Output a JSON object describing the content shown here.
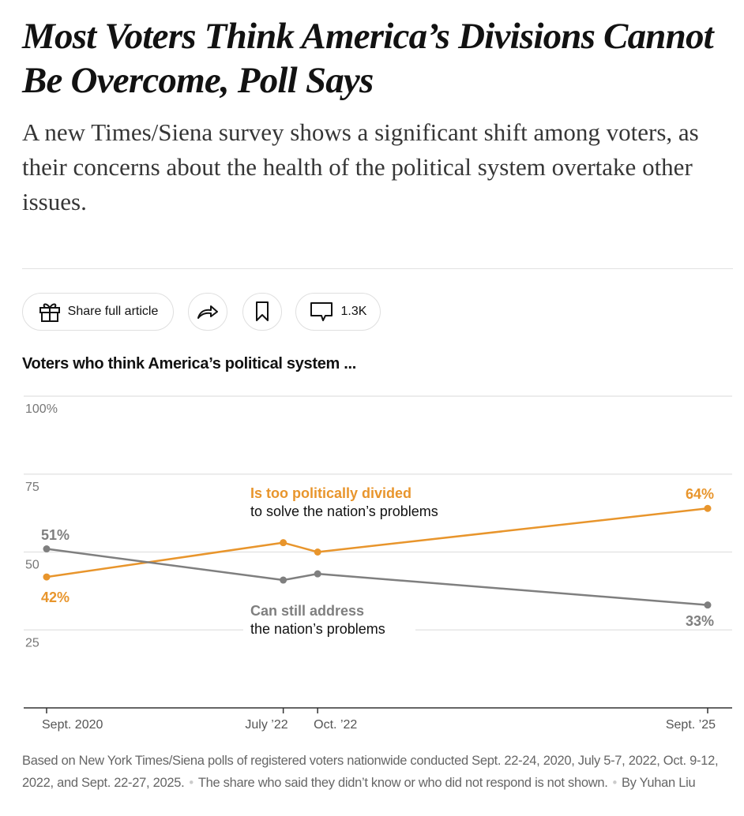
{
  "article": {
    "headline": "Most Voters Think America’s Divisions Cannot Be Overcome, Poll Says",
    "summary": "A new Times/Siena survey shows a significant shift among voters, as their concerns about the health of the political system overtake other issues."
  },
  "toolbar": {
    "share_label": "Share full article",
    "comments_count": "1.3K",
    "icons": [
      "gift-icon",
      "share-arrow-icon",
      "bookmark-icon",
      "comment-icon"
    ]
  },
  "chart_data": {
    "type": "line",
    "title": "Voters who think America’s political system ...",
    "x": [
      "Sept. 2020",
      "July ’22",
      "Oct. ’22",
      "Sept. ’25"
    ],
    "x_dates": [
      2020.72,
      2022.51,
      2022.77,
      2025.72
    ],
    "ylim": [
      0,
      100
    ],
    "yticks": [
      {
        "value": 100,
        "label": "100%"
      },
      {
        "value": 75,
        "label": "75"
      },
      {
        "value": 50,
        "label": "50"
      },
      {
        "value": 25,
        "label": "25"
      }
    ],
    "grid": true,
    "series": [
      {
        "name": "Is too politically divided",
        "name_suffix": "to solve the nation’s problems",
        "color": "#e8952c",
        "values": [
          42,
          53,
          50,
          64
        ],
        "start_label": "42%",
        "end_label": "64%"
      },
      {
        "name": "Can still address",
        "name_suffix": "the nation’s problems",
        "color": "#7f7f7f",
        "values": [
          51,
          41,
          43,
          33
        ],
        "start_label": "51%",
        "end_label": "33%"
      }
    ]
  },
  "footnote": {
    "source": "Based on New York Times/Siena polls of registered voters nationwide conducted Sept. 22-24, 2020, July 5-7, 2022, Oct. 9-12, 2022, and Sept. 22-27, 2025.",
    "note": "The share who said they didn’t know or who did not respond is not shown.",
    "byline": "By Yuhan Liu"
  }
}
